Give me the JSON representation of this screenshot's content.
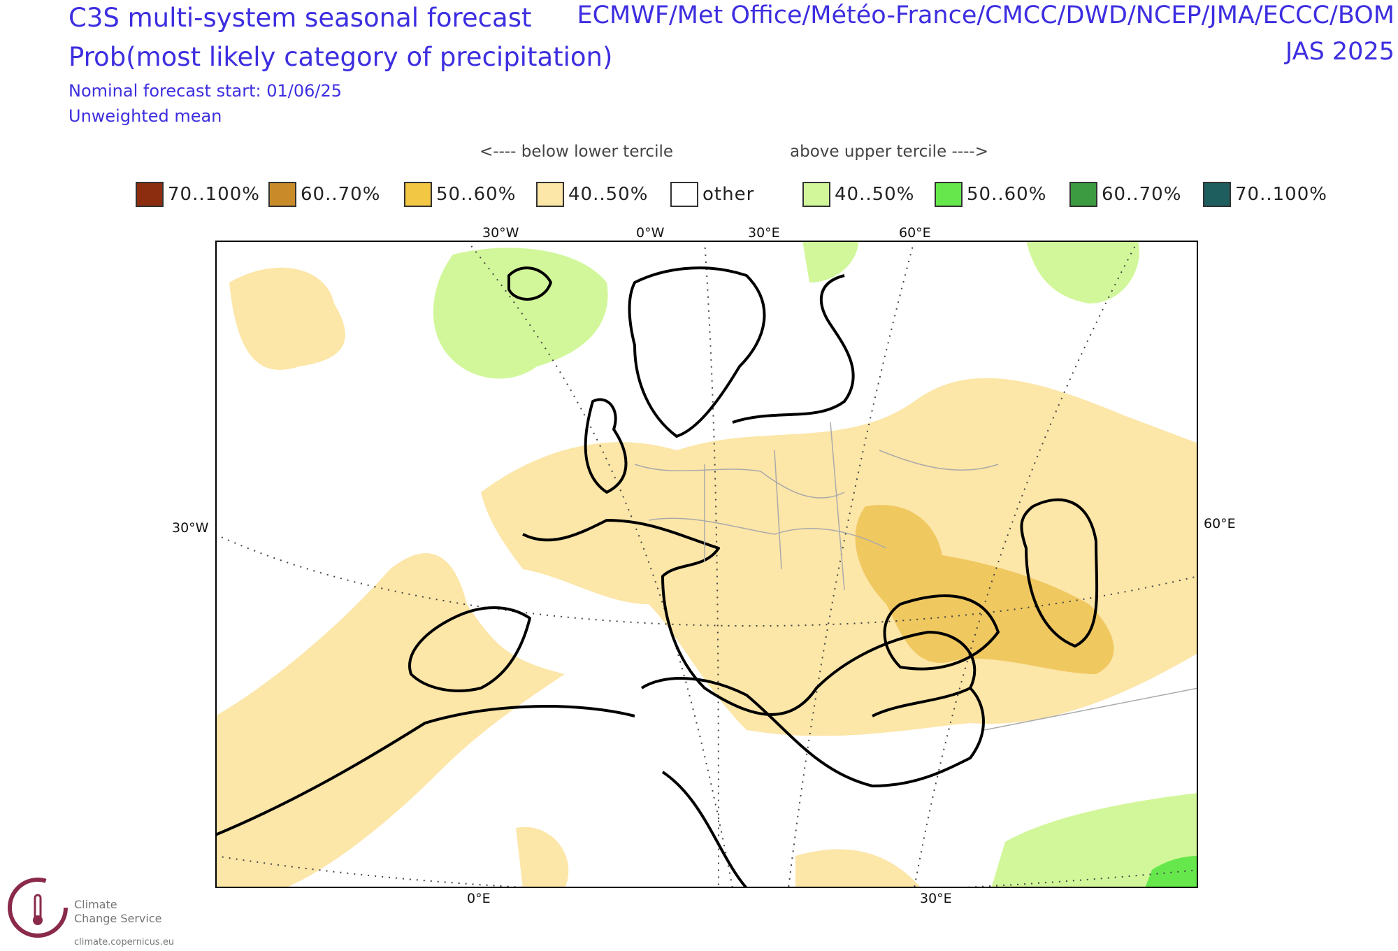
{
  "header": {
    "title_left": "C3S multi-system seasonal forecast",
    "subtitle_left": "Prob(most likely category of precipitation)",
    "line3": "Nominal forecast start: 01/06/25",
    "line4": "Unweighted mean",
    "centres": "ECMWF/Met Office/Météo-France/CMCC/DWD/NCEP/JMA/ECCC/BOM",
    "period": "JAS 2025"
  },
  "legend": {
    "below_note": "<---- below lower tercile",
    "above_note": "above upper tercile ---->",
    "items": [
      {
        "label": "70..100%",
        "color": "#8c2d10"
      },
      {
        "label": "60..70%",
        "color": "#c98b2a"
      },
      {
        "label": "50..60%",
        "color": "#f2c744"
      },
      {
        "label": "40..50%",
        "color": "#fce6a8"
      },
      {
        "label": "other",
        "color": "#ffffff"
      },
      {
        "label": "40..50%",
        "color": "#d2f79a"
      },
      {
        "label": "50..60%",
        "color": "#66e84c"
      },
      {
        "label": "60..70%",
        "color": "#3c9a40"
      },
      {
        "label": "70..100%",
        "color": "#1e5e5e"
      }
    ]
  },
  "map": {
    "lon_top": [
      "30°W",
      "0°W",
      "30°E",
      "60°E"
    ],
    "lon_bottom": [
      "0°E",
      "30°E"
    ],
    "lon_left": "30°W",
    "lon_right": "60°E"
  },
  "logo": {
    "line1": "Climate",
    "line2": "Change Service",
    "url": "climate.copernicus.eu"
  }
}
